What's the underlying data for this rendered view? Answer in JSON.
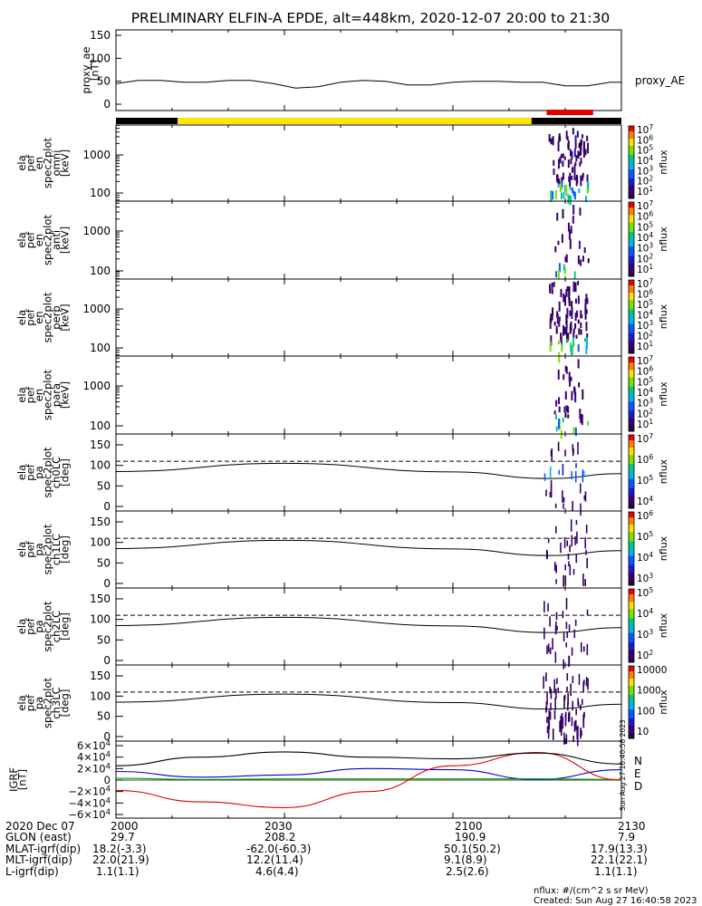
{
  "title": "PRELIMINARY ELFIN-A EPDE, alt=448km, 2020-12-07 20:00 to 21:30",
  "x_ticks": [
    "2000",
    "2030",
    "2100",
    "2130"
  ],
  "side_stamp": "Sun Aug 27 16:40:58 2023",
  "footer": {
    "rows": [
      {
        "label": "2020 Dec 07",
        "values": [
          "2000",
          "2030",
          "2100",
          "2130"
        ]
      },
      {
        "label": "GLON (east)",
        "values": [
          "29.7",
          "208.2",
          "190.9",
          "7.9"
        ]
      },
      {
        "label": "MLAT-igrf(dip)",
        "values": [
          "18.2(-3.3)",
          "-62.0(-60.3)",
          "50.1(50.2)",
          "17.9(13.3)"
        ]
      },
      {
        "label": "MLT-igrf(dip)",
        "values": [
          "22.0(21.9)",
          "12.2(11.4)",
          "9.1(8.9)",
          "22.1(22.1)"
        ]
      },
      {
        "label": "L-igrf(dip)",
        "values": [
          "1.1(1.1)",
          "4.6(4.4)",
          "2.5(2.6)",
          "1.1(1.1)"
        ]
      }
    ],
    "units_note": "nflux: #/(cm^2 s sr MeV)",
    "created": "Created: Sun Aug 27 16:40:58 2023"
  },
  "colors": {
    "yellow_bar": "#ffe600",
    "red_bar": "#e60000",
    "igrf_n": "#0000cc",
    "igrf_e": "#00a000",
    "igrf_d": "#dd0000",
    "igrf_total": "#000000"
  },
  "chart_data": [
    {
      "type": "line",
      "panel": "proxy_ae",
      "ylabel": [
        "proxy_ae",
        "[nT]"
      ],
      "yticks": [
        "150",
        "100",
        "50",
        "0"
      ],
      "ylim": [
        0,
        150
      ],
      "legend": "proxy_AE",
      "x_minutes": [
        0,
        4,
        8,
        12,
        16,
        20,
        24,
        28,
        32,
        36,
        40,
        44,
        48,
        52,
        56,
        60,
        64,
        68,
        72,
        76,
        80,
        84,
        88,
        90
      ],
      "values": [
        45,
        52,
        52,
        48,
        48,
        52,
        52,
        45,
        35,
        38,
        48,
        52,
        50,
        42,
        42,
        48,
        50,
        50,
        48,
        48,
        40,
        40,
        48,
        48
      ]
    },
    {
      "type": "bar",
      "panel": "orbit_flags",
      "segments": [
        {
          "start_min": 0,
          "end_min": 11,
          "color": "black"
        },
        {
          "start_min": 11,
          "end_min": 74,
          "color": "yellow"
        },
        {
          "start_min": 74,
          "end_min": 90,
          "color": "black"
        }
      ],
      "science_zone": {
        "start_min": 77,
        "end_min": 84,
        "color": "red"
      }
    },
    {
      "type": "heatmap",
      "panel": "spec2plot_omni",
      "ylabel": [
        "ela",
        "pef",
        "en",
        "spec2plot",
        "omni",
        "[keV]"
      ],
      "yticks": [
        "1000",
        "100"
      ],
      "scale": "log",
      "colorbar_ticks": [
        "10^7",
        "10^6",
        "10^5",
        "10^4",
        "10^3",
        "10^2",
        "10^1"
      ],
      "colorbar_label": "nflux",
      "active_minutes": [
        77,
        84
      ]
    },
    {
      "type": "heatmap",
      "panel": "spec2plot_anti",
      "ylabel": [
        "ela",
        "pef",
        "en",
        "spec2plot",
        "anti",
        "[keV]"
      ],
      "yticks": [
        "1000",
        "100"
      ],
      "scale": "log",
      "colorbar_ticks": [
        "10^7",
        "10^6",
        "10^5",
        "10^4",
        "10^3",
        "10^2",
        "10^1"
      ],
      "colorbar_label": "nflux",
      "active_minutes": [
        78,
        84
      ]
    },
    {
      "type": "heatmap",
      "panel": "spec2plot_perp",
      "ylabel": [
        "ela",
        "pef",
        "en",
        "spec2plot",
        "perp",
        "[keV]"
      ],
      "yticks": [
        "1000",
        "100"
      ],
      "scale": "log",
      "colorbar_ticks": [
        "10^7",
        "10^6",
        "10^5",
        "10^4",
        "10^3",
        "10^2",
        "10^1"
      ],
      "colorbar_label": "nflux",
      "active_minutes": [
        77,
        84
      ]
    },
    {
      "type": "heatmap",
      "panel": "spec2plot_para",
      "ylabel": [
        "ela",
        "pef",
        "en",
        "spec2plot",
        "para",
        "[keV]"
      ],
      "yticks": [
        "1000",
        "100"
      ],
      "scale": "log",
      "colorbar_ticks": [
        "10^7",
        "10^6",
        "10^5",
        "10^4",
        "10^3",
        "10^2",
        "10^1"
      ],
      "colorbar_label": "nflux",
      "active_minutes": [
        78,
        84
      ]
    },
    {
      "type": "heatmap",
      "panel": "spec2plot_ch0LC",
      "ylabel": [
        "ela",
        "pef",
        "pa",
        "spec2plot",
        "ch0LC",
        "[deg]"
      ],
      "yticks": [
        "150",
        "100",
        "50",
        "0"
      ],
      "ylim": [
        0,
        180
      ],
      "colorbar_ticks": [
        "10^7",
        "10^6",
        "10^5",
        "10^4"
      ],
      "colorbar_label": "nflux",
      "dashed_level_deg": 110,
      "solid_curve_deg": [
        {
          "t": 0,
          "v": 85
        },
        {
          "t": 30,
          "v": 105
        },
        {
          "t": 60,
          "v": 84
        },
        {
          "t": 77,
          "v": 68
        },
        {
          "t": 90,
          "v": 80
        }
      ]
    },
    {
      "type": "heatmap",
      "panel": "spec2plot_ch1LC",
      "ylabel": [
        "ela",
        "pef",
        "pa",
        "spec2plot",
        "ch1LC",
        "[deg]"
      ],
      "yticks": [
        "150",
        "100",
        "50",
        "0"
      ],
      "ylim": [
        0,
        180
      ],
      "colorbar_ticks": [
        "10^6",
        "10^5",
        "10^4",
        "10^3"
      ],
      "colorbar_label": "nflux",
      "dashed_level_deg": 110,
      "solid_curve_deg": [
        {
          "t": 0,
          "v": 85
        },
        {
          "t": 30,
          "v": 105
        },
        {
          "t": 60,
          "v": 84
        },
        {
          "t": 77,
          "v": 68
        },
        {
          "t": 90,
          "v": 80
        }
      ]
    },
    {
      "type": "heatmap",
      "panel": "spec2plot_ch2LC",
      "ylabel": [
        "ela",
        "pef",
        "pa",
        "spec2plot",
        "ch2LC",
        "[deg]"
      ],
      "yticks": [
        "150",
        "100",
        "50",
        "0"
      ],
      "ylim": [
        0,
        180
      ],
      "colorbar_ticks": [
        "10^5",
        "10^4",
        "10^3",
        "10^2"
      ],
      "colorbar_label": "nflux",
      "dashed_level_deg": 110,
      "solid_curve_deg": [
        {
          "t": 0,
          "v": 85
        },
        {
          "t": 30,
          "v": 105
        },
        {
          "t": 60,
          "v": 84
        },
        {
          "t": 77,
          "v": 68
        },
        {
          "t": 90,
          "v": 80
        }
      ]
    },
    {
      "type": "heatmap",
      "panel": "spec2plot_ch3LC",
      "ylabel": [
        "ela",
        "pef",
        "pa",
        "spec2plot",
        "ch3LC",
        "[deg]"
      ],
      "yticks": [
        "150",
        "100",
        "50",
        "0"
      ],
      "ylim": [
        0,
        180
      ],
      "colorbar_ticks": [
        "10000",
        "1000",
        "100",
        "10"
      ],
      "colorbar_label": "nflux",
      "dashed_level_deg": 110,
      "solid_curve_deg": [
        {
          "t": 0,
          "v": 85
        },
        {
          "t": 30,
          "v": 105
        },
        {
          "t": 60,
          "v": 84
        },
        {
          "t": 77,
          "v": 68
        },
        {
          "t": 90,
          "v": 80
        }
      ]
    },
    {
      "type": "line",
      "panel": "IGRF",
      "ylabel": [
        "IGRF",
        "[nT]"
      ],
      "yticks": [
        "6×10^4",
        "4×10^4",
        "2×10^4",
        "0",
        "−2×10^4",
        "−4×10^4",
        "−6×10^4"
      ],
      "ylim": [
        -65000,
        65000
      ],
      "legend": [
        "N",
        "E",
        "D"
      ],
      "series": [
        {
          "name": "N",
          "color": "blue",
          "x_minutes": [
            0,
            15,
            30,
            45,
            60,
            75,
            90
          ],
          "values": [
            15000,
            5000,
            9000,
            20000,
            18000,
            1000,
            18000
          ]
        },
        {
          "name": "E",
          "color": "green",
          "x_minutes": [
            0,
            15,
            30,
            45,
            60,
            75,
            90
          ],
          "values": [
            3000,
            1000,
            2000,
            2000,
            2000,
            2000,
            1000
          ]
        },
        {
          "name": "D",
          "color": "red",
          "x_minutes": [
            0,
            15,
            30,
            45,
            60,
            75,
            90
          ],
          "values": [
            -18000,
            -38000,
            -48000,
            -20000,
            25000,
            48000,
            0
          ]
        },
        {
          "name": "total",
          "color": "black",
          "x_minutes": [
            0,
            15,
            30,
            45,
            60,
            75,
            90
          ],
          "values": [
            25000,
            40000,
            49000,
            40000,
            37000,
            47000,
            28000
          ]
        }
      ]
    }
  ]
}
